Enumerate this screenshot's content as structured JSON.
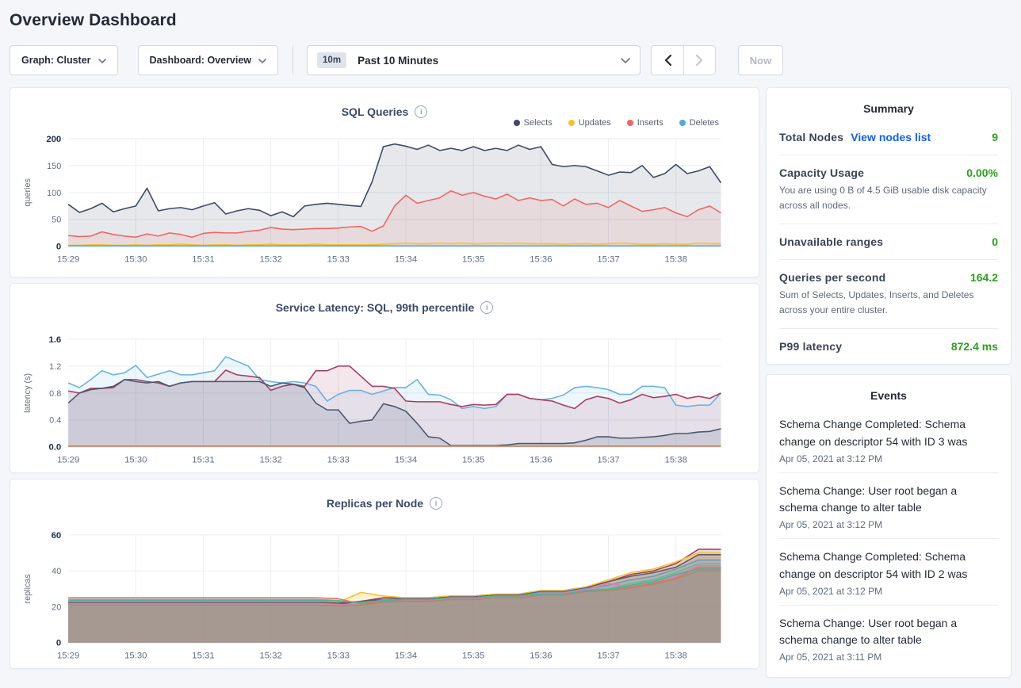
{
  "header": {
    "title": "Overview Dashboard"
  },
  "controls": {
    "graph_label": "Graph: Cluster",
    "dashboard_label": "Dashboard: Overview",
    "range_badge": "10m",
    "range_title": "Past 10 Minutes",
    "now_label": "Now"
  },
  "summary": {
    "title": "Summary",
    "rows": [
      {
        "label": "Total Nodes",
        "link": "View nodes list",
        "value": "9"
      },
      {
        "label": "Capacity Usage",
        "value": "0.00%",
        "desc": "You are using 0 B of 4.5 GiB usable disk capacity across all nodes."
      },
      {
        "label": "Unavailable ranges",
        "value": "0"
      },
      {
        "label": "Queries per second",
        "value": "164.2",
        "desc": "Sum of Selects, Updates, Inserts, and Deletes across your entire cluster."
      },
      {
        "label": "P99 latency",
        "value": "872.4 ms"
      }
    ]
  },
  "events": {
    "title": "Events",
    "items": [
      {
        "message": "Schema Change Completed: Schema change on descriptor 54 with ID 3 was",
        "timestamp": "Apr 05, 2021 at 3:12 PM"
      },
      {
        "message": "Schema Change: User root began a schema change to alter table",
        "timestamp": "Apr 05, 2021 at 3:12 PM"
      },
      {
        "message": "Schema Change Completed: Schema change on descriptor 54 with ID 2 was",
        "timestamp": "Apr 05, 2021 at 3:12 PM"
      },
      {
        "message": "Schema Change: User root began a schema change to alter table",
        "timestamp": "Apr 05, 2021 at 3:11 PM"
      }
    ]
  },
  "colors": {
    "accent_green": "#2da01c",
    "link_blue": "#1460e8",
    "grid": "#e9eef4",
    "axis_line": "#ccd2db",
    "tick_text": "#5f6c84",
    "tick_text_bold": "#1b2e4f"
  },
  "chart_data": [
    {
      "type": "area",
      "id": "sql-queries",
      "title": "SQL Queries",
      "ylabel": "queries",
      "ylim": [
        0,
        200
      ],
      "yticks": [
        0,
        50,
        100,
        150,
        200
      ],
      "ytick_labels": [
        "0",
        "50",
        "100",
        "150",
        "200"
      ],
      "x_tick_labels": [
        "15:29",
        "15:30",
        "15:31",
        "15:32",
        "15:33",
        "15:34",
        "15:35",
        "15:36",
        "15:37",
        "15:38"
      ],
      "x_total_seconds": 580,
      "legend_position": "top-right",
      "grid": true,
      "series": [
        {
          "name": "Selects",
          "color": "#3e4a61",
          "fill_opacity": 0.13,
          "values": [
            78,
            63,
            70,
            80,
            64,
            70,
            75,
            108,
            66,
            70,
            72,
            68,
            75,
            81,
            60,
            66,
            70,
            67,
            57,
            64,
            55,
            75,
            78,
            80,
            78,
            76,
            74,
            120,
            185,
            190,
            186,
            180,
            188,
            178,
            182,
            178,
            185,
            178,
            182,
            178,
            188,
            180,
            185,
            152,
            148,
            150,
            148,
            140,
            132,
            138,
            137,
            150,
            128,
            135,
            152,
            135,
            140,
            148,
            118
          ]
        },
        {
          "name": "Inserts",
          "color": "#f16565",
          "fill_opacity": 0.1,
          "values": [
            20,
            18,
            19,
            27,
            22,
            19,
            17,
            23,
            19,
            25,
            22,
            17,
            24,
            26,
            25,
            25,
            28,
            30,
            35,
            32,
            31,
            32,
            33,
            33,
            34,
            36,
            37,
            28,
            38,
            75,
            95,
            80,
            85,
            90,
            103,
            95,
            100,
            93,
            88,
            97,
            85,
            90,
            85,
            87,
            75,
            88,
            78,
            80,
            72,
            85,
            75,
            65,
            68,
            72,
            62,
            55,
            68,
            75,
            62
          ]
        },
        {
          "name": "Updates",
          "color": "#f8c02e",
          "fill_opacity": 0.1,
          "values": [
            2,
            2,
            3,
            3,
            2,
            2,
            3,
            2,
            3,
            3,
            4,
            3,
            2,
            3,
            3,
            2,
            3,
            3,
            4,
            3,
            3,
            3,
            4,
            3,
            3,
            3,
            3,
            3,
            4,
            5,
            6,
            5,
            5,
            6,
            5,
            6,
            5,
            5,
            6,
            5,
            6,
            5,
            5,
            5,
            4,
            5,
            5,
            4,
            5,
            6,
            5,
            4,
            4,
            5,
            4,
            4,
            6,
            5,
            5
          ]
        },
        {
          "name": "Deletes",
          "color": "#51a8dd",
          "fill_opacity": 0.1,
          "values": [
            1,
            1
          ]
        }
      ],
      "legend": [
        {
          "label": "Selects",
          "color": "#3e4a61"
        },
        {
          "label": "Updates",
          "color": "#f8c02e"
        },
        {
          "label": "Inserts",
          "color": "#f16565"
        },
        {
          "label": "Deletes",
          "color": "#51a8dd"
        }
      ]
    },
    {
      "type": "area",
      "id": "service-latency",
      "title": "Service Latency: SQL, 99th percentile",
      "ylabel": "latency (s)",
      "ylim": [
        0,
        1.6
      ],
      "yticks": [
        0,
        0.4,
        0.8,
        1.2,
        1.6
      ],
      "ytick_labels": [
        "0.0",
        "0.4",
        "0.8",
        "1.2",
        "1.6"
      ],
      "x_tick_labels": [
        "15:29",
        "15:30",
        "15:31",
        "15:32",
        "15:33",
        "15:34",
        "15:35",
        "15:36",
        "15:37",
        "15:38"
      ],
      "x_total_seconds": 580,
      "grid": true,
      "series": [
        {
          "name": "node-blue",
          "color": "#67b1e1",
          "fill_opacity": 0.12,
          "values": [
            0.95,
            0.88,
            1.0,
            1.13,
            1.07,
            1.1,
            1.21,
            1.03,
            1.08,
            1.13,
            1.07,
            1.07,
            1.1,
            1.13,
            1.34,
            1.27,
            1.2,
            1.0,
            0.97,
            0.95,
            0.97,
            0.95,
            0.9,
            0.68,
            0.78,
            0.84,
            0.84,
            0.78,
            0.83,
            0.88,
            0.88,
            1.0,
            0.78,
            0.77,
            0.7,
            0.57,
            0.6,
            0.57,
            0.6,
            0.78,
            0.78,
            0.72,
            0.7,
            0.72,
            0.77,
            0.88,
            0.9,
            0.88,
            0.85,
            0.78,
            0.78,
            0.9,
            0.9,
            0.88,
            0.62,
            0.6,
            0.62,
            0.62,
            0.8
          ]
        },
        {
          "name": "node-maroon",
          "color": "#a63d60",
          "fill_opacity": 0.12,
          "values": [
            0.83,
            0.8,
            0.87,
            0.87,
            0.88,
            1.0,
            1.0,
            0.97,
            0.95,
            0.9,
            0.95,
            0.97,
            0.97,
            0.97,
            1.14,
            1.07,
            1.05,
            1.03,
            0.84,
            0.9,
            0.93,
            0.9,
            1.13,
            1.13,
            1.2,
            1.2,
            1.05,
            0.9,
            0.9,
            0.87,
            0.68,
            0.67,
            0.67,
            0.67,
            0.63,
            0.6,
            0.63,
            0.62,
            0.63,
            0.78,
            0.78,
            0.72,
            0.7,
            0.68,
            0.62,
            0.57,
            0.7,
            0.75,
            0.72,
            0.65,
            0.7,
            0.78,
            0.73,
            0.75,
            0.78,
            0.72,
            0.75,
            0.72,
            0.8
          ]
        },
        {
          "name": "node-navy",
          "color": "#475872",
          "fill_opacity": 0.14,
          "values": [
            0.65,
            0.8,
            0.85,
            0.87,
            0.9,
            1.0,
            0.97,
            0.95,
            0.97,
            0.9,
            0.95,
            0.97,
            0.97,
            0.97,
            0.97,
            0.97,
            0.97,
            0.97,
            0.9,
            0.95,
            0.93,
            0.88,
            0.65,
            0.55,
            0.55,
            0.35,
            0.38,
            0.4,
            0.64,
            0.6,
            0.53,
            0.35,
            0.15,
            0.13,
            0.02,
            0.02,
            0.02,
            0.02,
            0.02,
            0.03,
            0.05,
            0.05,
            0.05,
            0.05,
            0.05,
            0.06,
            0.1,
            0.15,
            0.15,
            0.13,
            0.13,
            0.14,
            0.15,
            0.17,
            0.2,
            0.2,
            0.22,
            0.23,
            0.27
          ]
        },
        {
          "name": "node-orange",
          "color": "#cf8658",
          "fill_opacity": 0.0,
          "values": [
            0.012,
            0.012
          ]
        }
      ]
    },
    {
      "type": "area",
      "id": "replicas-per-node",
      "title": "Replicas per Node",
      "ylabel": "replicas",
      "ylim": [
        0,
        60
      ],
      "yticks": [
        0,
        20,
        40,
        60
      ],
      "ytick_labels": [
        "0",
        "20",
        "40",
        "60"
      ],
      "x_tick_labels": [
        "15:29",
        "15:30",
        "15:31",
        "15:32",
        "15:33",
        "15:34",
        "15:35",
        "15:36",
        "15:37",
        "15:38"
      ],
      "x_total_seconds": 580,
      "grid": true,
      "series": [
        {
          "name": "node-maroon",
          "color": "#9e3d63",
          "fill_opacity": 0.22,
          "values": [
            22,
            22,
            22,
            22,
            22,
            22,
            22,
            22,
            22,
            22,
            22,
            22,
            21.5,
            23,
            25,
            25,
            25,
            26,
            26,
            27,
            27,
            29,
            29,
            31,
            34,
            38,
            40,
            44,
            52,
            52
          ]
        },
        {
          "name": "node-yellow",
          "color": "#f8c02e",
          "fill_opacity": 0.22,
          "values": [
            23,
            23,
            23,
            23,
            23,
            23,
            23,
            23,
            23,
            23,
            23,
            23,
            22.5,
            28,
            26,
            25,
            25,
            26,
            26,
            27,
            27,
            29,
            29,
            31,
            35,
            39,
            41,
            45,
            50,
            50
          ]
        },
        {
          "name": "node-gray",
          "color": "#595f6b",
          "fill_opacity": 0.22,
          "values": [
            22.5,
            22.5,
            22.5,
            22.5,
            22.5,
            22.5,
            22.5,
            22.5,
            22.5,
            22.5,
            22.5,
            22.5,
            22,
            23,
            24,
            24.5,
            24.5,
            25.5,
            25.5,
            26.5,
            26.5,
            28.5,
            28.5,
            30.5,
            34,
            37,
            39,
            42,
            49,
            49
          ]
        },
        {
          "name": "node-blue",
          "color": "#6b9ac4",
          "fill_opacity": 0.22,
          "values": [
            21.5,
            21.5,
            21.5,
            21.5,
            21.5,
            21.5,
            21.5,
            21.5,
            21.5,
            21.5,
            21.5,
            21.5,
            21,
            21,
            24,
            24,
            24,
            25,
            25,
            26,
            26,
            28,
            28,
            30,
            32,
            35,
            37,
            41,
            46,
            46
          ]
        },
        {
          "name": "node-green",
          "color": "#62bd8b",
          "fill_opacity": 0.22,
          "values": [
            24,
            24,
            24,
            24,
            24,
            24,
            24,
            24,
            24,
            24,
            24,
            24,
            23.5,
            22,
            23.5,
            24,
            24,
            25,
            25,
            26,
            26,
            27.5,
            27.5,
            29.5,
            30,
            33,
            35,
            39,
            44,
            44
          ]
        },
        {
          "name": "node-pink",
          "color": "#e37bb8",
          "fill_opacity": 0.22,
          "values": [
            21.8,
            21.8,
            21.8,
            21.8,
            21.8,
            21.8,
            21.8,
            21.8,
            21.8,
            21.8,
            21.8,
            21.8,
            21.3,
            21,
            23,
            23.5,
            23.5,
            24.5,
            24.5,
            25.5,
            25.5,
            27.5,
            27.5,
            29.5,
            33,
            31,
            33,
            37,
            43,
            43
          ]
        },
        {
          "name": "node-salmon",
          "color": "#e2726d",
          "fill_opacity": 0.22,
          "values": [
            25,
            25,
            25,
            25,
            25,
            25,
            25,
            25,
            25,
            25,
            25,
            25,
            24.5,
            21.5,
            23,
            24,
            24,
            25,
            25,
            26,
            26,
            27,
            27,
            29,
            29,
            31,
            33,
            36,
            42,
            42
          ]
        },
        {
          "name": "node-teal",
          "color": "#4bafa6",
          "fill_opacity": 0.22,
          "values": [
            23.5,
            23.5,
            23.5,
            23.5,
            23.5,
            23.5,
            23.5,
            23.5,
            23.5,
            23.5,
            23.5,
            23.5,
            23,
            22.5,
            23.5,
            24,
            24,
            25,
            25,
            26,
            26,
            27,
            27,
            29,
            29.5,
            32,
            34,
            38,
            41,
            41
          ]
        },
        {
          "name": "node-brown",
          "color": "#b08968",
          "fill_opacity": 0.22,
          "values": [
            21,
            21,
            21,
            21,
            21,
            21,
            21,
            21,
            21,
            21,
            21,
            21,
            20.8,
            21,
            22.5,
            23,
            23,
            24,
            24,
            25,
            25,
            26.5,
            26.5,
            28.5,
            29,
            30.5,
            32.5,
            35.5,
            40,
            40
          ]
        }
      ]
    }
  ]
}
